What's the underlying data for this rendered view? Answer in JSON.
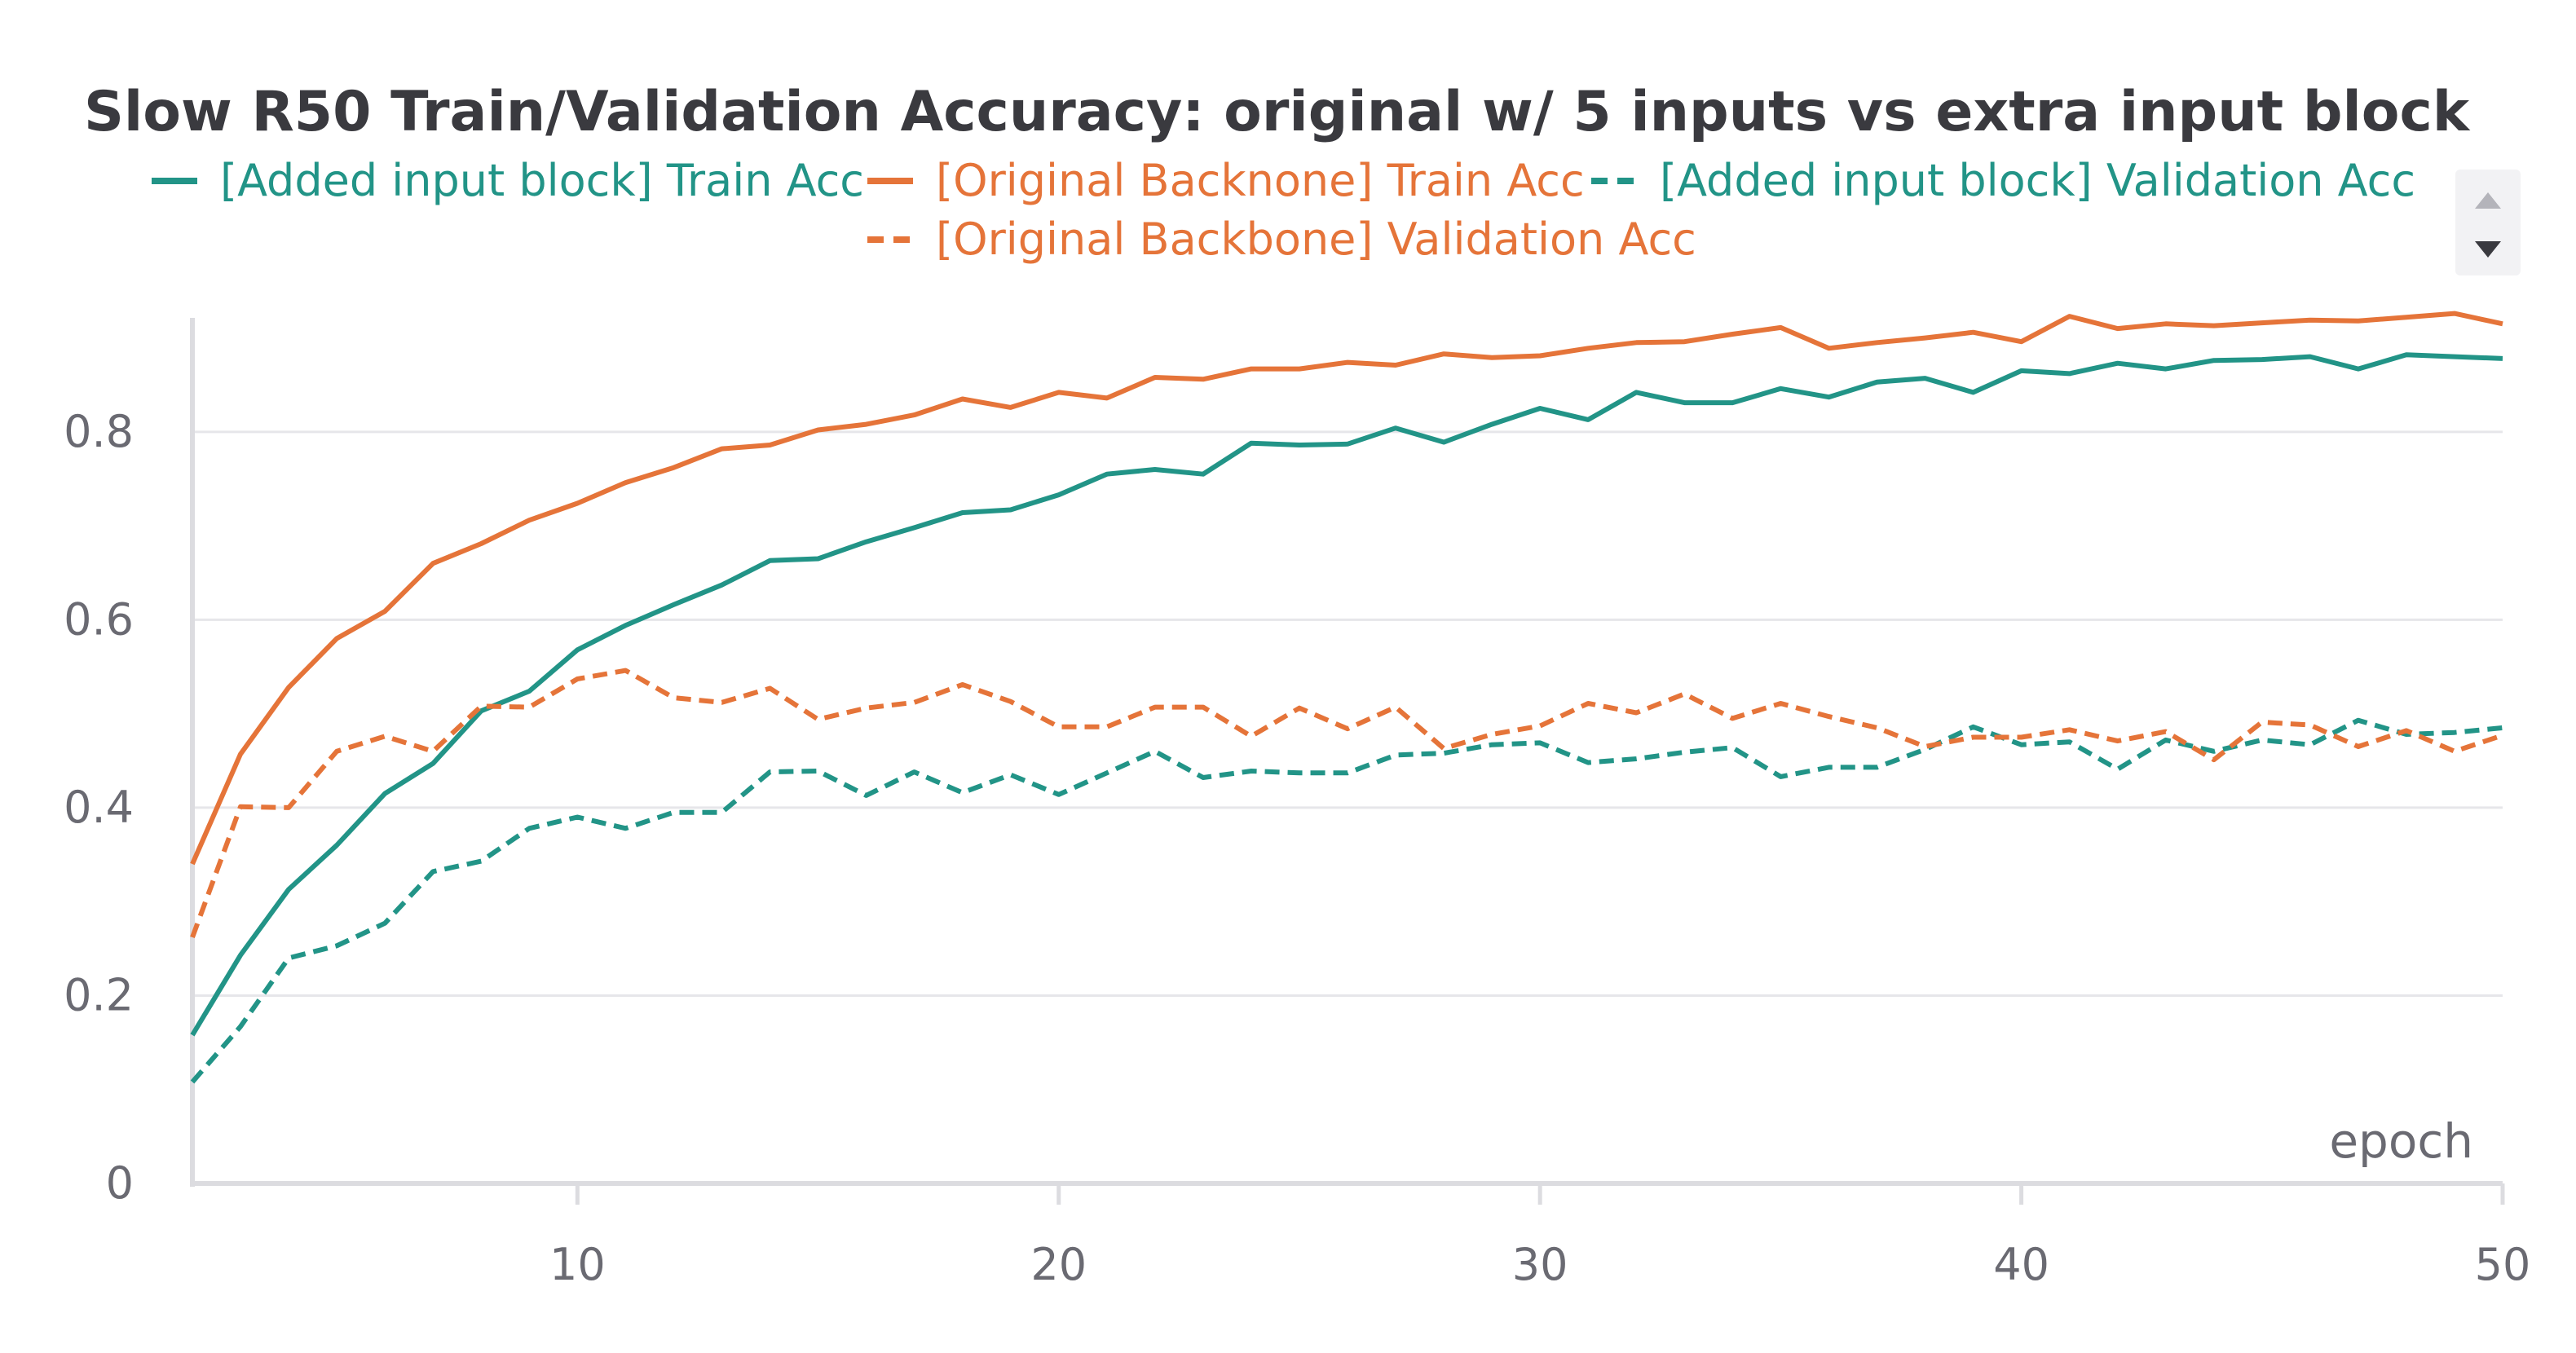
{
  "chart_data": {
    "type": "line",
    "title": "Slow R50 Train/Validation Accuracy: original w/ 5 inputs vs extra input block",
    "xlabel": "epoch",
    "ylabel": "",
    "xlim": [
      2,
      50
    ],
    "ylim": [
      0,
      0.93
    ],
    "x_ticks": [
      10,
      20,
      30,
      40,
      50
    ],
    "x_tick_labels": [
      "10",
      "20",
      "30",
      "40",
      "50"
    ],
    "y_ticks": [
      0,
      0.2,
      0.4,
      0.6,
      0.8
    ],
    "y_tick_labels": [
      "0",
      "0.2",
      "0.4",
      "0.6",
      "0.8"
    ],
    "grid": "horizontal",
    "legend_position": "top",
    "x": [
      2,
      3,
      4,
      5,
      6,
      7,
      8,
      9,
      10,
      11,
      12,
      13,
      14,
      15,
      16,
      17,
      18,
      19,
      20,
      21,
      22,
      23,
      24,
      25,
      26,
      27,
      28,
      29,
      30,
      31,
      32,
      33,
      34,
      35,
      36,
      37,
      38,
      39,
      40,
      41,
      42,
      43,
      44,
      45,
      46,
      47,
      48,
      49,
      50
    ],
    "series": [
      {
        "name": "[Added input block] Train Acc",
        "color": "#229487",
        "dashed": false,
        "values": [
          0.158,
          0.243,
          0.313,
          0.36,
          0.415,
          0.447,
          0.503,
          0.524,
          0.568,
          0.594,
          0.616,
          0.637,
          0.663,
          0.665,
          0.683,
          0.698,
          0.714,
          0.717,
          0.733,
          0.755,
          0.76,
          0.755,
          0.788,
          0.786,
          0.787,
          0.804,
          0.789,
          0.808,
          0.825,
          0.813,
          0.842,
          0.831,
          0.831,
          0.846,
          0.837,
          0.853,
          0.857,
          0.842,
          0.865,
          0.862,
          0.873,
          0.867,
          0.876,
          0.877,
          0.88,
          0.867,
          0.882,
          0.88,
          0.878
        ]
      },
      {
        "name": "[Original Backnone] Train Acc",
        "color": "#e57439",
        "dashed": false,
        "values": [
          0.34,
          0.457,
          0.528,
          0.58,
          0.609,
          0.66,
          0.681,
          0.706,
          0.724,
          0.746,
          0.762,
          0.782,
          0.786,
          0.802,
          0.808,
          0.818,
          0.835,
          0.826,
          0.842,
          0.836,
          0.858,
          0.856,
          0.867,
          0.867,
          0.874,
          0.871,
          0.883,
          0.879,
          0.881,
          0.889,
          0.895,
          0.896,
          0.904,
          0.911,
          0.889,
          0.895,
          0.9,
          0.906,
          0.896,
          0.923,
          0.91,
          0.915,
          0.913,
          0.916,
          0.919,
          0.918,
          0.922,
          0.926,
          0.915
        ]
      },
      {
        "name": "[Added input block] Validation Acc",
        "color": "#229487",
        "dashed": true,
        "values": [
          0.108,
          0.167,
          0.24,
          0.253,
          0.277,
          0.332,
          0.343,
          0.378,
          0.39,
          0.378,
          0.395,
          0.395,
          0.438,
          0.439,
          0.413,
          0.438,
          0.416,
          0.435,
          0.414,
          0.437,
          0.46,
          0.432,
          0.439,
          0.437,
          0.437,
          0.456,
          0.458,
          0.467,
          0.469,
          0.448,
          0.452,
          0.459,
          0.464,
          0.433,
          0.443,
          0.443,
          0.462,
          0.486,
          0.467,
          0.47,
          0.441,
          0.472,
          0.46,
          0.472,
          0.467,
          0.493,
          0.478,
          0.48,
          0.485
        ]
      },
      {
        "name": "[Original Backbone] Validation Acc",
        "color": "#e57439",
        "dashed": true,
        "values": [
          0.262,
          0.401,
          0.4,
          0.46,
          0.476,
          0.46,
          0.508,
          0.507,
          0.537,
          0.546,
          0.517,
          0.512,
          0.527,
          0.494,
          0.506,
          0.512,
          0.531,
          0.513,
          0.486,
          0.486,
          0.507,
          0.507,
          0.476,
          0.506,
          0.484,
          0.507,
          0.463,
          0.478,
          0.487,
          0.511,
          0.501,
          0.521,
          0.495,
          0.511,
          0.497,
          0.485,
          0.465,
          0.475,
          0.475,
          0.483,
          0.471,
          0.481,
          0.451,
          0.491,
          0.488,
          0.465,
          0.482,
          0.46,
          0.477
        ]
      }
    ]
  }
}
